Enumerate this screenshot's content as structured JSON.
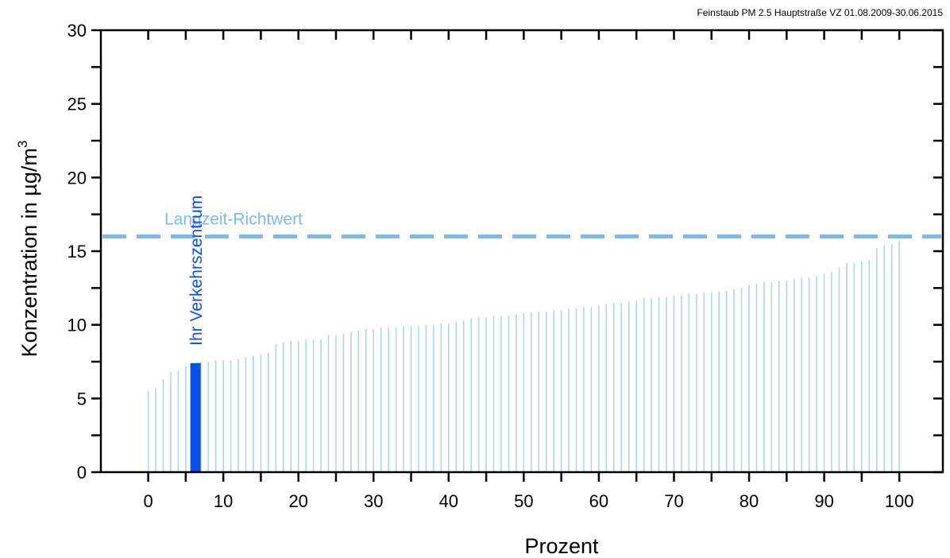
{
  "chart_data": {
    "type": "bar",
    "title": "Feinstaub PM 2.5 Hauptstraße VZ 01.08.2009-30.06.2015",
    "xlabel": "Prozent",
    "ylabel": "Konzentration in µg/m",
    "ylabel_superscript": "3",
    "xlim": [
      -6.3,
      105.8
    ],
    "ylim": [
      0,
      30
    ],
    "x_ticks": [
      0,
      10,
      20,
      30,
      40,
      50,
      60,
      70,
      80,
      90,
      100
    ],
    "y_ticks": [
      0,
      5,
      10,
      15,
      20,
      25,
      30
    ],
    "grid": false,
    "colors": {
      "bars": "#aed3f3",
      "highlight": "#0a4fe8",
      "reference": "#7db9f0",
      "axes": "#000000"
    },
    "reference_line": {
      "label": "Langzeit-Richtwert",
      "value": 16
    },
    "highlight": {
      "label": "Ihr Verkehrszentrum",
      "x": 6.3,
      "value": 7.4
    },
    "series": [
      {
        "x": [
          0,
          1,
          2,
          3,
          4,
          5,
          6,
          7,
          8,
          9,
          10,
          11,
          12,
          13,
          14,
          15,
          16,
          17,
          18,
          19,
          20,
          21,
          22,
          23,
          24,
          25,
          26,
          27,
          28,
          29,
          30,
          31,
          32,
          33,
          34,
          35,
          36,
          37,
          38,
          39,
          40,
          41,
          42,
          43,
          44,
          45,
          46,
          47,
          48,
          49,
          50,
          51,
          52,
          53,
          54,
          55,
          56,
          57,
          58,
          59,
          60,
          61,
          62,
          63,
          64,
          65,
          66,
          67,
          68,
          69,
          70,
          71,
          72,
          73,
          74,
          75,
          76,
          77,
          78,
          79,
          80,
          81,
          82,
          83,
          84,
          85,
          86,
          87,
          88,
          89,
          90,
          91,
          92,
          93,
          94,
          95,
          96,
          97,
          98,
          99,
          100
        ],
        "values": [
          5.5,
          5.7,
          6.3,
          6.8,
          6.9,
          7.2,
          7.4,
          7.5,
          7.5,
          7.6,
          7.6,
          7.6,
          7.7,
          7.8,
          7.9,
          8.0,
          8.1,
          8.7,
          8.8,
          8.9,
          8.9,
          9.0,
          9.0,
          9.0,
          9.3,
          9.3,
          9.4,
          9.5,
          9.6,
          9.7,
          9.7,
          9.8,
          9.8,
          9.8,
          9.9,
          9.9,
          9.9,
          10.0,
          10.0,
          10.1,
          10.1,
          10.2,
          10.3,
          10.4,
          10.5,
          10.5,
          10.6,
          10.6,
          10.6,
          10.7,
          10.8,
          10.8,
          10.9,
          10.9,
          11.0,
          11.0,
          11.1,
          11.1,
          11.2,
          11.2,
          11.3,
          11.4,
          11.5,
          11.5,
          11.6,
          11.6,
          11.8,
          11.8,
          11.9,
          11.9,
          12.0,
          12.0,
          12.1,
          12.1,
          12.2,
          12.2,
          12.3,
          12.3,
          12.4,
          12.5,
          12.7,
          12.8,
          12.9,
          12.9,
          13.0,
          13.0,
          13.1,
          13.2,
          13.2,
          13.3,
          13.5,
          13.6,
          13.9,
          14.2,
          14.2,
          14.3,
          14.4,
          15.2,
          15.4,
          15.5,
          15.7
        ]
      }
    ]
  }
}
